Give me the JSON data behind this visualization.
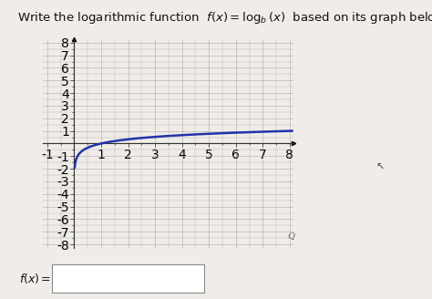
{
  "title_plain": "Write the logarithmic function ",
  "title_math": "$f(x) = \\log_b(x)$",
  "title_end": " based on its graph below.",
  "title_fontsize": 9.5,
  "xmin": -1,
  "xmax": 8,
  "ymin": -8,
  "ymax": 8,
  "xticks": [
    -1,
    1,
    2,
    3,
    4,
    5,
    6,
    7,
    8
  ],
  "yticks": [
    -8,
    -7,
    -6,
    -5,
    -4,
    -3,
    -2,
    -1,
    1,
    2,
    3,
    4,
    5,
    6,
    7,
    8
  ],
  "curve_color": "#2233aa",
  "curve_linewidth": 1.8,
  "log_base": 8,
  "grid_color": "#aaaaaa",
  "grid_linewidth": 0.4,
  "bg_color": "#f0ede8",
  "answer_label": "$f(x) =$",
  "answer_fontsize": 9,
  "axes_color": "#333333",
  "tick_fontsize": 6.5
}
